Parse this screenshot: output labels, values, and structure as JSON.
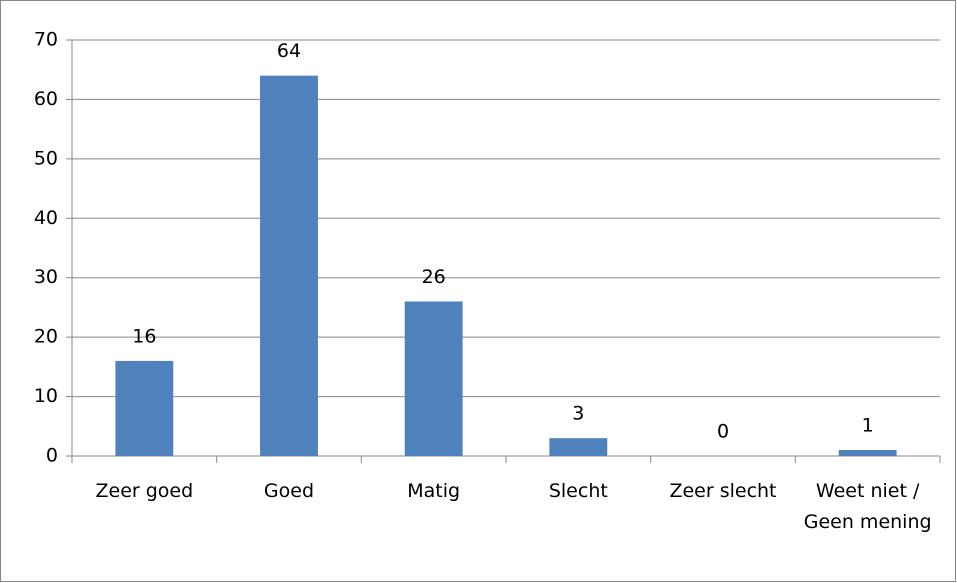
{
  "chart_data": {
    "type": "bar",
    "categories": [
      "Zeer goed",
      "Goed",
      "Matig",
      "Slecht",
      "Zeer slecht",
      "Weet niet / Geen mening"
    ],
    "values": [
      16,
      64,
      26,
      3,
      0,
      1
    ],
    "color": "#4f81bd",
    "ylim": [
      0,
      70
    ],
    "yticks": [
      0,
      10,
      20,
      30,
      40,
      50,
      60,
      70
    ],
    "grid": true
  }
}
